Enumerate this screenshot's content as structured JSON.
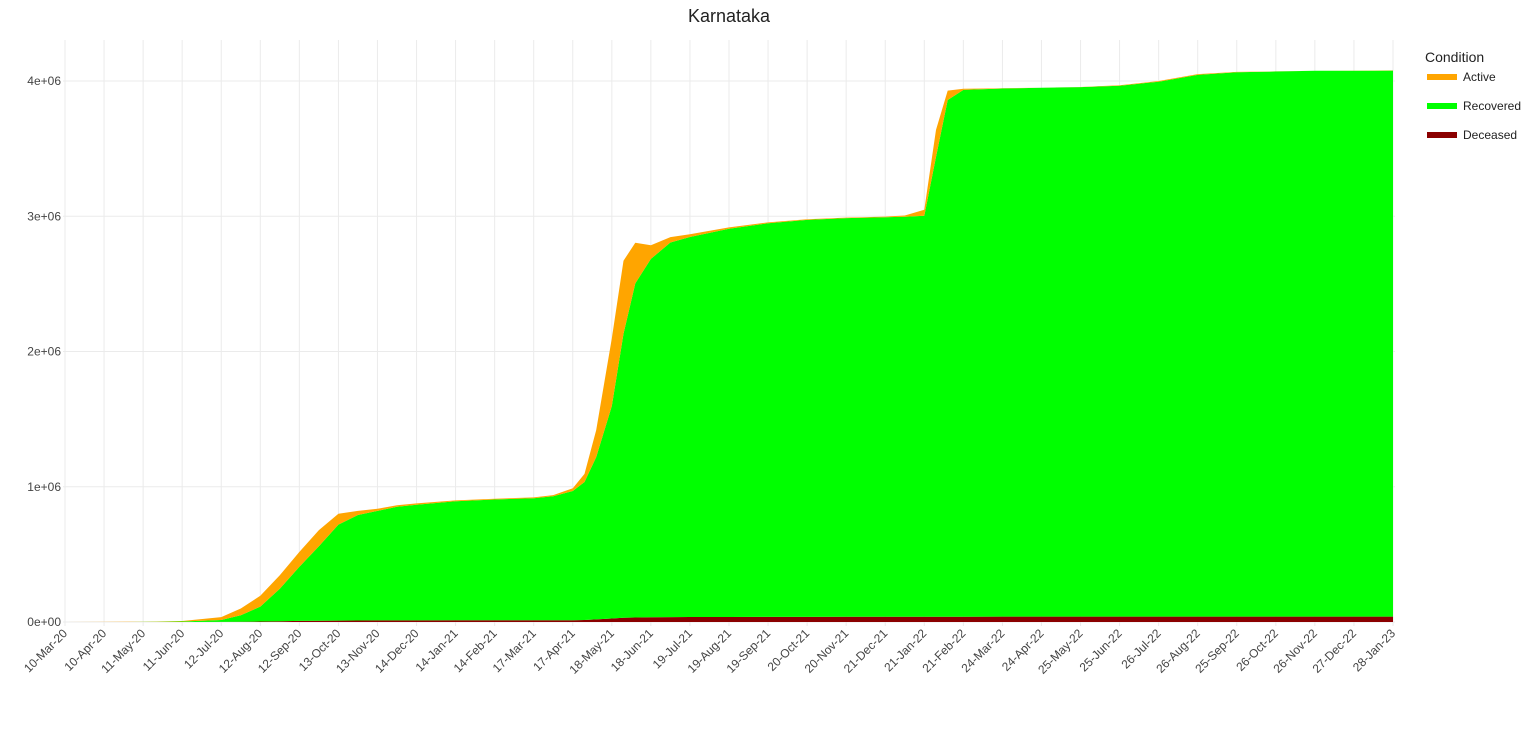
{
  "chart_data": {
    "type": "area",
    "stacked": true,
    "title": "Karnataka",
    "xlabel": "",
    "ylabel": "",
    "ylim": [
      0,
      4200000
    ],
    "yticks": [
      {
        "value": 0,
        "label": "0e+00"
      },
      {
        "value": 1000000,
        "label": "1e+06"
      },
      {
        "value": 2000000,
        "label": "2e+06"
      },
      {
        "value": 3000000,
        "label": "3e+06"
      },
      {
        "value": 4000000,
        "label": "4e+06"
      }
    ],
    "xticks": [
      "10-Mar-20",
      "10-Apr-20",
      "11-May-20",
      "11-Jun-20",
      "12-Jul-20",
      "12-Aug-20",
      "12-Sep-20",
      "13-Oct-20",
      "13-Nov-20",
      "14-Dec-20",
      "14-Jan-21",
      "14-Feb-21",
      "17-Mar-21",
      "17-Apr-21",
      "18-May-21",
      "18-Jun-21",
      "19-Jul-21",
      "19-Aug-21",
      "19-Sep-21",
      "20-Oct-21",
      "20-Nov-21",
      "21-Dec-21",
      "21-Jan-22",
      "21-Feb-22",
      "24-Mar-22",
      "24-Apr-22",
      "25-May-22",
      "25-Jun-22",
      "26-Jul-22",
      "26-Aug-22",
      "25-Sep-22",
      "26-Oct-22",
      "26-Nov-22",
      "27-Dec-22",
      "28-Jan-23"
    ],
    "grid": true,
    "legend": {
      "title": "Condition",
      "placement": "right"
    },
    "x": [
      0,
      1,
      2,
      3,
      4,
      4.5,
      5,
      5.5,
      6,
      6.5,
      7,
      7.5,
      8,
      8.5,
      9,
      10,
      11,
      12,
      12.5,
      13,
      13.3,
      13.6,
      14,
      14.3,
      14.6,
      15,
      15.5,
      16,
      17,
      18,
      19,
      20,
      21,
      21.5,
      22,
      22.3,
      22.6,
      23,
      24,
      25,
      26,
      27,
      28,
      29,
      30,
      31,
      32,
      33,
      34
    ],
    "series": [
      {
        "name": "Deceased",
        "color": "#8b0000",
        "values": [
          0,
          10,
          20,
          100,
          500,
          1800,
          3500,
          5500,
          8000,
          9800,
          10500,
          11200,
          11600,
          11900,
          12100,
          12300,
          12400,
          12600,
          12900,
          13600,
          15000,
          19000,
          26000,
          31000,
          33500,
          35000,
          36000,
          36700,
          37300,
          37800,
          38000,
          38100,
          38200,
          38350,
          38500,
          38800,
          39200,
          39500,
          39700,
          39800,
          39900,
          40000,
          40100,
          40200,
          40200,
          40200,
          40200,
          40200,
          40200
        ]
      },
      {
        "name": "Recovered",
        "color": "#00ff00",
        "values": [
          0,
          190,
          1000,
          3500,
          14000,
          48000,
          110000,
          240000,
          400000,
          550000,
          710000,
          780000,
          810000,
          840000,
          855000,
          880000,
          893000,
          903000,
          917000,
          955000,
          1020000,
          1200000,
          1570000,
          2100000,
          2470000,
          2650000,
          2770000,
          2810000,
          2870000,
          2910000,
          2935000,
          2948000,
          2955000,
          2958000,
          2965000,
          3400000,
          3820000,
          3895000,
          3905000,
          3910000,
          3915000,
          3925000,
          3955000,
          4005000,
          4025000,
          4030000,
          4035000,
          4036000,
          4037000
        ]
      },
      {
        "name": "Active",
        "color": "#ffa500",
        "values": [
          0,
          300,
          1000,
          4000,
          22000,
          50000,
          80000,
          100000,
          110000,
          120000,
          80000,
          30000,
          15000,
          12000,
          10000,
          7000,
          6000,
          6000,
          8000,
          20000,
          60000,
          200000,
          500000,
          540000,
          300000,
          100000,
          40000,
          20000,
          10000,
          7000,
          5000,
          4000,
          4000,
          9000,
          45000,
          200000,
          70000,
          8000,
          2000,
          1000,
          1000,
          3000,
          5000,
          6000,
          2000,
          1000,
          1000,
          1000,
          1000
        ]
      }
    ]
  }
}
